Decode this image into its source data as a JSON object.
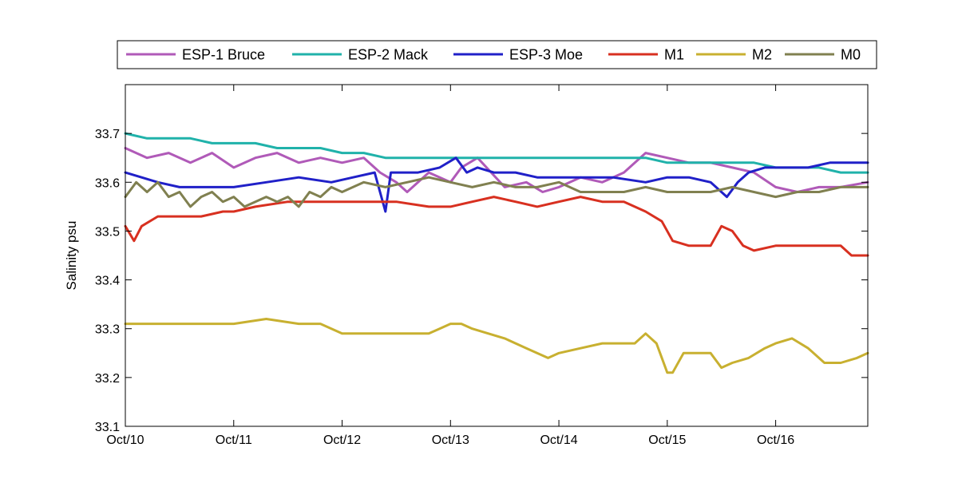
{
  "chart_data": {
    "type": "line",
    "ylabel": "Salinity psu",
    "xlabel": "",
    "ylim": [
      33.1,
      33.8
    ],
    "yticks": [
      33.1,
      33.2,
      33.3,
      33.4,
      33.5,
      33.6,
      33.7
    ],
    "ytick_labels": [
      "33.1",
      "33.2",
      "33.3",
      "33.4",
      "33.5",
      "33.6",
      "33.7"
    ],
    "xlim": [
      0,
      6.85
    ],
    "xticks": [
      0,
      1,
      2,
      3,
      4,
      5,
      6
    ],
    "xtick_labels": [
      "Oct/10",
      "Oct/11",
      "Oct/12",
      "Oct/13",
      "Oct/14",
      "Oct/15",
      "Oct/16"
    ],
    "grid": false,
    "legend_position": "top, horizontal, outside plot",
    "series": [
      {
        "name": "ESP-1 Bruce",
        "color": "#b05ab8",
        "x": [
          0,
          0.2,
          0.4,
          0.6,
          0.8,
          1.0,
          1.2,
          1.4,
          1.6,
          1.8,
          2.0,
          2.2,
          2.35,
          2.5,
          2.6,
          2.8,
          3.0,
          3.1,
          3.25,
          3.5,
          3.7,
          3.85,
          4.0,
          4.2,
          4.4,
          4.6,
          4.8,
          5.0,
          5.2,
          5.4,
          5.6,
          5.8,
          6.0,
          6.2,
          6.4,
          6.6,
          6.85
        ],
        "y": [
          33.67,
          33.65,
          33.66,
          33.64,
          33.66,
          33.63,
          33.65,
          33.66,
          33.64,
          33.65,
          33.64,
          33.65,
          33.62,
          33.6,
          33.58,
          33.62,
          33.6,
          33.63,
          33.65,
          33.59,
          33.6,
          33.58,
          33.59,
          33.61,
          33.6,
          33.62,
          33.66,
          33.65,
          33.64,
          33.64,
          33.63,
          33.62,
          33.59,
          33.58,
          33.59,
          33.59,
          33.6
        ]
      },
      {
        "name": "ESP-2 Mack",
        "color": "#20b2aa",
        "x": [
          0,
          0.2,
          0.4,
          0.6,
          0.8,
          1.0,
          1.2,
          1.4,
          1.6,
          1.8,
          2.0,
          2.2,
          2.4,
          2.6,
          2.8,
          3.0,
          3.2,
          3.4,
          3.6,
          3.8,
          4.0,
          4.2,
          4.4,
          4.6,
          4.8,
          5.0,
          5.2,
          5.4,
          5.6,
          5.8,
          6.0,
          6.2,
          6.4,
          6.6,
          6.8,
          6.85
        ],
        "y": [
          33.7,
          33.69,
          33.69,
          33.69,
          33.68,
          33.68,
          33.68,
          33.67,
          33.67,
          33.67,
          33.66,
          33.66,
          33.65,
          33.65,
          33.65,
          33.65,
          33.65,
          33.65,
          33.65,
          33.65,
          33.65,
          33.65,
          33.65,
          33.65,
          33.65,
          33.64,
          33.64,
          33.64,
          33.64,
          33.64,
          33.63,
          33.63,
          33.63,
          33.62,
          33.62,
          33.62
        ]
      },
      {
        "name": "ESP-3 Moe",
        "color": "#2020c8",
        "x": [
          0,
          0.15,
          0.3,
          0.5,
          0.8,
          1.0,
          1.3,
          1.6,
          1.9,
          2.1,
          2.3,
          2.4,
          2.45,
          2.5,
          2.7,
          2.9,
          3.05,
          3.15,
          3.25,
          3.4,
          3.6,
          3.8,
          4.0,
          4.2,
          4.5,
          4.8,
          5.0,
          5.2,
          5.4,
          5.55,
          5.65,
          5.75,
          5.9,
          6.1,
          6.3,
          6.5,
          6.7,
          6.85
        ],
        "y": [
          33.62,
          33.61,
          33.6,
          33.59,
          33.59,
          33.59,
          33.6,
          33.61,
          33.6,
          33.61,
          33.62,
          33.54,
          33.62,
          33.62,
          33.62,
          33.63,
          33.65,
          33.62,
          33.63,
          33.62,
          33.62,
          33.61,
          33.61,
          33.61,
          33.61,
          33.6,
          33.61,
          33.61,
          33.6,
          33.57,
          33.6,
          33.62,
          33.63,
          33.63,
          33.63,
          33.64,
          33.64,
          33.64
        ]
      },
      {
        "name": "M1",
        "color": "#d83020",
        "x": [
          0,
          0.08,
          0.15,
          0.3,
          0.5,
          0.7,
          0.9,
          1.0,
          1.2,
          1.5,
          1.8,
          2.0,
          2.2,
          2.5,
          2.8,
          3.0,
          3.2,
          3.4,
          3.6,
          3.8,
          4.0,
          4.2,
          4.4,
          4.6,
          4.8,
          4.95,
          5.05,
          5.2,
          5.4,
          5.5,
          5.6,
          5.7,
          5.8,
          6.0,
          6.2,
          6.4,
          6.6,
          6.7,
          6.85
        ],
        "y": [
          33.51,
          33.48,
          33.51,
          33.53,
          33.53,
          33.53,
          33.54,
          33.54,
          33.55,
          33.56,
          33.56,
          33.56,
          33.56,
          33.56,
          33.55,
          33.55,
          33.56,
          33.57,
          33.56,
          33.55,
          33.56,
          33.57,
          33.56,
          33.56,
          33.54,
          33.52,
          33.48,
          33.47,
          33.47,
          33.51,
          33.5,
          33.47,
          33.46,
          33.47,
          33.47,
          33.47,
          33.47,
          33.45,
          33.45
        ]
      },
      {
        "name": "M2",
        "color": "#c8b030",
        "x": [
          0,
          0.3,
          0.6,
          0.8,
          1.0,
          1.3,
          1.6,
          1.8,
          2.0,
          2.2,
          2.4,
          2.6,
          2.8,
          2.9,
          3.0,
          3.1,
          3.2,
          3.35,
          3.5,
          3.7,
          3.9,
          4.0,
          4.2,
          4.4,
          4.6,
          4.7,
          4.8,
          4.9,
          5.0,
          5.05,
          5.15,
          5.25,
          5.4,
          5.5,
          5.6,
          5.75,
          5.9,
          6.0,
          6.15,
          6.3,
          6.45,
          6.6,
          6.75,
          6.85
        ],
        "y": [
          33.31,
          33.31,
          33.31,
          33.31,
          33.31,
          33.32,
          33.31,
          33.31,
          33.29,
          33.29,
          33.29,
          33.29,
          33.29,
          33.3,
          33.31,
          33.31,
          33.3,
          33.29,
          33.28,
          33.26,
          33.24,
          33.25,
          33.26,
          33.27,
          33.27,
          33.27,
          33.29,
          33.27,
          33.21,
          33.21,
          33.25,
          33.25,
          33.25,
          33.22,
          33.23,
          33.24,
          33.26,
          33.27,
          33.28,
          33.26,
          33.23,
          33.23,
          33.24,
          33.25
        ]
      },
      {
        "name": "M0",
        "color": "#808050",
        "x": [
          0,
          0.1,
          0.2,
          0.3,
          0.4,
          0.5,
          0.6,
          0.7,
          0.8,
          0.9,
          1.0,
          1.1,
          1.2,
          1.3,
          1.4,
          1.5,
          1.6,
          1.7,
          1.8,
          1.9,
          2.0,
          2.2,
          2.4,
          2.6,
          2.8,
          3.0,
          3.2,
          3.4,
          3.6,
          3.8,
          4.0,
          4.2,
          4.4,
          4.6,
          4.8,
          5.0,
          5.2,
          5.4,
          5.6,
          5.8,
          6.0,
          6.2,
          6.4,
          6.6,
          6.85
        ],
        "y": [
          33.57,
          33.6,
          33.58,
          33.6,
          33.57,
          33.58,
          33.55,
          33.57,
          33.58,
          33.56,
          33.57,
          33.55,
          33.56,
          33.57,
          33.56,
          33.57,
          33.55,
          33.58,
          33.57,
          33.59,
          33.58,
          33.6,
          33.59,
          33.6,
          33.61,
          33.6,
          33.59,
          33.6,
          33.59,
          33.59,
          33.6,
          33.58,
          33.58,
          33.58,
          33.59,
          33.58,
          33.58,
          33.58,
          33.59,
          33.58,
          33.57,
          33.58,
          33.58,
          33.59,
          33.59
        ]
      }
    ]
  }
}
